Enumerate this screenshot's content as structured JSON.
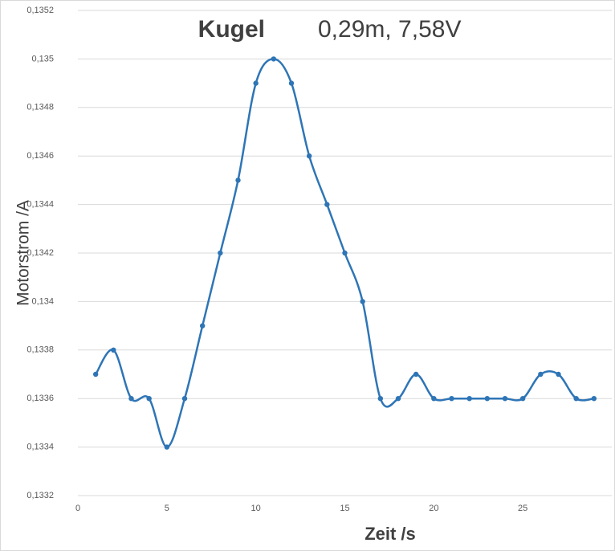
{
  "chart_data": {
    "type": "line",
    "title_parts": [
      "Kugel",
      "0,29m, 7,58V"
    ],
    "x_label": "Zeit /s",
    "y_label": "Motorstrom /A",
    "x": [
      1,
      2,
      3,
      4,
      5,
      6,
      7,
      8,
      9,
      10,
      11,
      12,
      13,
      14,
      15,
      16,
      17,
      18,
      19,
      20,
      21,
      22,
      23,
      24,
      25,
      26,
      27,
      28,
      29
    ],
    "series": [
      {
        "color": "#2e75b6",
        "values": [
          0.1337,
          0.1338,
          0.1336,
          0.1336,
          0.1334,
          0.1336,
          0.1339,
          0.1342,
          0.1345,
          0.1349,
          0.135,
          0.1349,
          0.1346,
          0.1344,
          0.1342,
          0.134,
          0.1336,
          0.1336,
          0.1337,
          0.1336,
          0.1336,
          0.1336,
          0.1336,
          0.1336,
          0.1336,
          0.1337,
          0.1337,
          0.1336,
          0.1336
        ]
      }
    ],
    "xlim": [
      0,
      30
    ],
    "xticks": [
      0,
      5,
      10,
      15,
      20,
      25
    ],
    "ylim": [
      0.1332,
      0.1352
    ],
    "yticks": [
      {
        "value": 0.1332,
        "label": "0,1332"
      },
      {
        "value": 0.1334,
        "label": "0,1334"
      },
      {
        "value": 0.1336,
        "label": "0,1336"
      },
      {
        "value": 0.1338,
        "label": "0,1338"
      },
      {
        "value": 0.134,
        "label": "0,134"
      },
      {
        "value": 0.1342,
        "label": "0,1342"
      },
      {
        "value": 0.1344,
        "label": "0,1344"
      },
      {
        "value": 0.1346,
        "label": "0,1346"
      },
      {
        "value": 0.1348,
        "label": "0,1348"
      },
      {
        "value": 0.135,
        "label": "0,135"
      },
      {
        "value": 0.1352,
        "label": "0,1352"
      }
    ],
    "grid": true,
    "smooth": true
  }
}
